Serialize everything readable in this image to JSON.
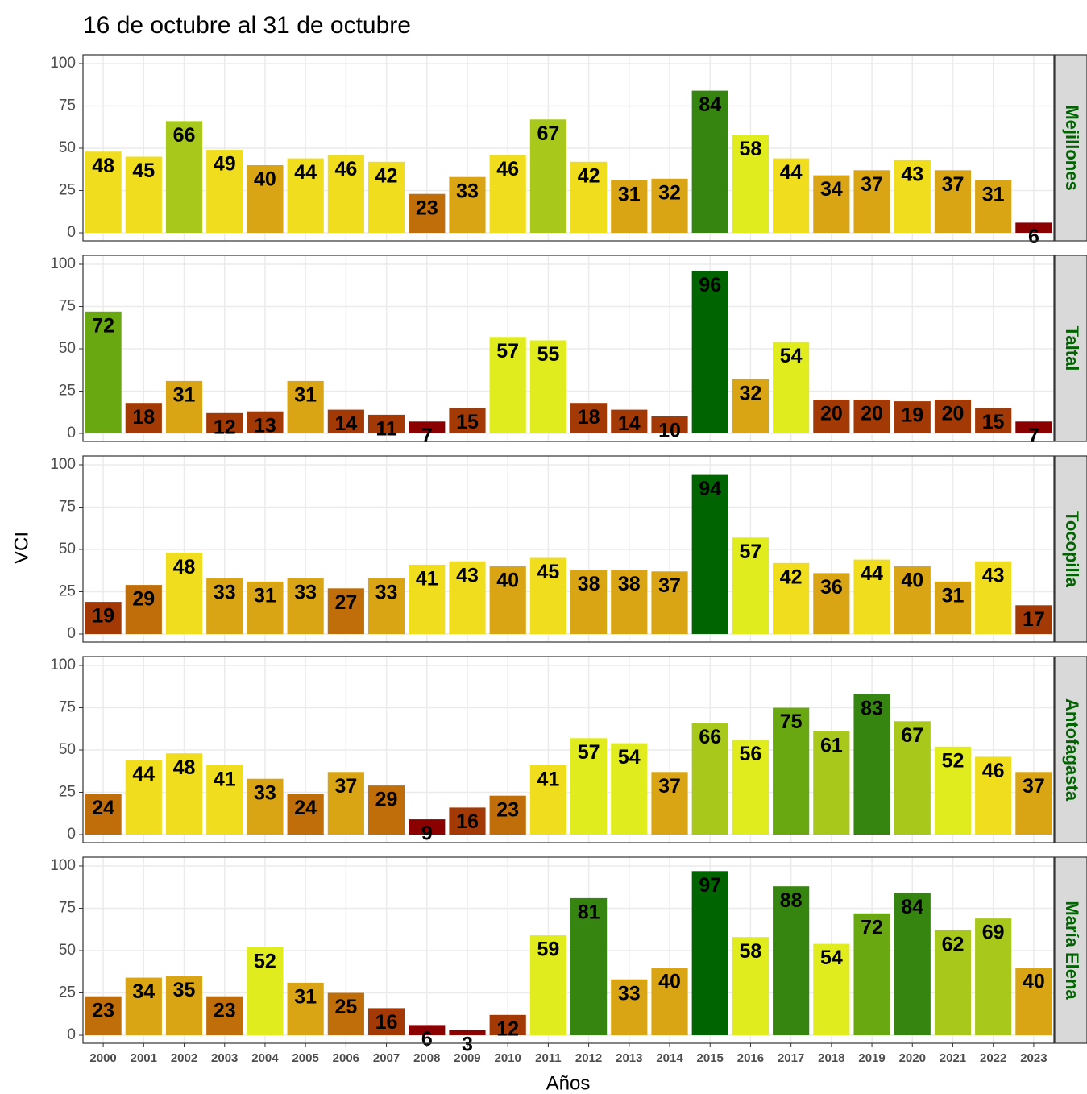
{
  "chart_data": {
    "type": "bar",
    "title": "16 de octubre al 31 de octubre",
    "xlabel": "Años",
    "ylabel": "VCI",
    "categories": [
      "2000",
      "2001",
      "2002",
      "2003",
      "2004",
      "2005",
      "2006",
      "2007",
      "2008",
      "2009",
      "2010",
      "2011",
      "2012",
      "2013",
      "2014",
      "2015",
      "2016",
      "2017",
      "2018",
      "2019",
      "2020",
      "2021",
      "2022",
      "2023"
    ],
    "ylim": [
      0,
      100
    ],
    "yticks": [
      0,
      25,
      50,
      75,
      100
    ],
    "grid": true,
    "panels": [
      {
        "name": "Mejillones",
        "values": [
          48,
          45,
          66,
          49,
          40,
          44,
          46,
          42,
          23,
          33,
          46,
          67,
          42,
          31,
          32,
          84,
          58,
          44,
          34,
          37,
          43,
          37,
          31,
          6
        ],
        "colors": [
          "#f0de1e",
          "#f0de1e",
          "#a8c81c",
          "#f0de1e",
          "#d9a514",
          "#f0de1e",
          "#f0de1e",
          "#f0de1e",
          "#c06e0a",
          "#d9a514",
          "#f0de1e",
          "#a8c81c",
          "#f0de1e",
          "#d9a514",
          "#d9a514",
          "#358510",
          "#e0ec1e",
          "#f0de1e",
          "#d9a514",
          "#d9a514",
          "#f0de1e",
          "#d9a514",
          "#d9a514",
          "#8b0000"
        ]
      },
      {
        "name": "Taltal",
        "values": [
          72,
          18,
          31,
          12,
          13,
          31,
          14,
          11,
          7,
          15,
          57,
          55,
          18,
          14,
          10,
          96,
          32,
          54,
          20,
          20,
          19,
          20,
          15,
          7
        ],
        "colors": [
          "#6aa812",
          "#a33a05",
          "#d9a514",
          "#a33a05",
          "#a33a05",
          "#d9a514",
          "#a33a05",
          "#a33a05",
          "#8b0000",
          "#a33a05",
          "#e0ec1e",
          "#e0ec1e",
          "#a33a05",
          "#a33a05",
          "#a33a05",
          "#006400",
          "#d9a514",
          "#e0ec1e",
          "#a33a05",
          "#a33a05",
          "#a33a05",
          "#a33a05",
          "#a33a05",
          "#8b0000"
        ]
      },
      {
        "name": "Tocopilla",
        "values": [
          19,
          29,
          48,
          33,
          31,
          33,
          27,
          33,
          41,
          43,
          40,
          45,
          38,
          38,
          37,
          94,
          57,
          42,
          36,
          44,
          40,
          31,
          43,
          17
        ],
        "colors": [
          "#a33a05",
          "#c06e0a",
          "#f0de1e",
          "#d9a514",
          "#d9a514",
          "#d9a514",
          "#c06e0a",
          "#d9a514",
          "#f0de1e",
          "#f0de1e",
          "#d9a514",
          "#f0de1e",
          "#d9a514",
          "#d9a514",
          "#d9a514",
          "#006400",
          "#e0ec1e",
          "#f0de1e",
          "#d9a514",
          "#f0de1e",
          "#d9a514",
          "#d9a514",
          "#f0de1e",
          "#a33a05"
        ]
      },
      {
        "name": "Antofagasta",
        "values": [
          24,
          44,
          48,
          41,
          33,
          24,
          37,
          29,
          9,
          16,
          23,
          41,
          57,
          54,
          37,
          66,
          56,
          75,
          61,
          83,
          67,
          52,
          46,
          37
        ],
        "colors": [
          "#c06e0a",
          "#f0de1e",
          "#f0de1e",
          "#f0de1e",
          "#d9a514",
          "#c06e0a",
          "#d9a514",
          "#c06e0a",
          "#8b0000",
          "#a33a05",
          "#c06e0a",
          "#f0de1e",
          "#e0ec1e",
          "#e0ec1e",
          "#d9a514",
          "#a8c81c",
          "#e0ec1e",
          "#6aa812",
          "#a8c81c",
          "#358510",
          "#a8c81c",
          "#e0ec1e",
          "#f0de1e",
          "#d9a514"
        ]
      },
      {
        "name": "María Elena",
        "values": [
          23,
          34,
          35,
          23,
          52,
          31,
          25,
          16,
          6,
          3,
          12,
          59,
          81,
          33,
          40,
          97,
          58,
          88,
          54,
          72,
          84,
          62,
          69,
          40
        ],
        "colors": [
          "#c06e0a",
          "#d9a514",
          "#d9a514",
          "#c06e0a",
          "#e0ec1e",
          "#d9a514",
          "#c06e0a",
          "#a33a05",
          "#8b0000",
          "#8b0000",
          "#a33a05",
          "#e0ec1e",
          "#358510",
          "#d9a514",
          "#d9a514",
          "#006400",
          "#e0ec1e",
          "#358510",
          "#e0ec1e",
          "#6aa812",
          "#358510",
          "#a8c81c",
          "#a8c81c",
          "#d9a514"
        ]
      }
    ]
  }
}
